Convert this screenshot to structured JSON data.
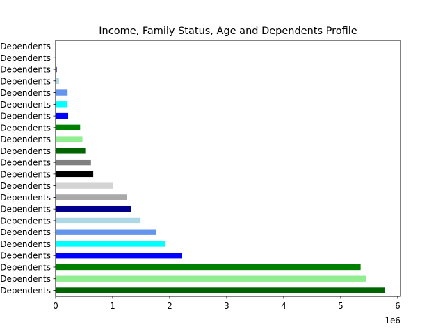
{
  "chart_data": {
    "type": "bar",
    "orientation": "horizontal",
    "title": "Income, Family Status, Age and Dependents Profile",
    "xlabel": "",
    "ylabel": "",
    "x_offset_label": "1e6",
    "xlim": [
      0,
      6050000
    ],
    "xticks": [
      0,
      1000000,
      2000000,
      3000000,
      4000000,
      5000000,
      6000000
    ],
    "xtick_labels": [
      "0",
      "1",
      "2",
      "3",
      "4",
      "5",
      "6"
    ],
    "grid": false,
    "categories": [
      "Dependents",
      "Dependents",
      "Dependents",
      "Dependents",
      "Dependents",
      "Dependents",
      "Dependents",
      "Dependents",
      "Dependents",
      "Dependents",
      "Dependents",
      "Dependents",
      "Dependents",
      "Dependents",
      "Dependents",
      "Dependents",
      "Dependents",
      "Dependents",
      "Dependents",
      "Dependents",
      "Dependents",
      "Dependents"
    ],
    "values": [
      5770000,
      5450000,
      5350000,
      2220000,
      1920000,
      1760000,
      1490000,
      1320000,
      1250000,
      1000000,
      660000,
      620000,
      520000,
      470000,
      430000,
      220000,
      210000,
      210000,
      60000,
      20000,
      10000,
      0
    ],
    "colors": [
      "#006400",
      "#90ee90",
      "#008000",
      "#0000ff",
      "#00ffff",
      "#6495ed",
      "#add8e6",
      "#00008b",
      "#a9a9a9",
      "#d3d3d3",
      "#000000",
      "#808080",
      "#006400",
      "#90ee90",
      "#008000",
      "#0000ff",
      "#00ffff",
      "#6495ed",
      "#add8e6",
      "#00008b",
      "#a9a9a9",
      "#d3d3d3"
    ]
  }
}
